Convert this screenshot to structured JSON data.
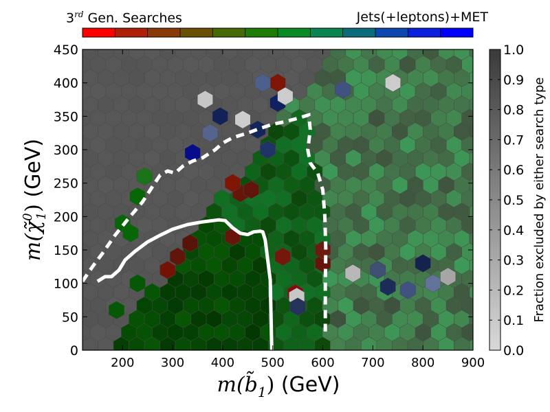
{
  "chart_data": {
    "type": "heatmap",
    "top_label_left": {
      "base": "3",
      "superscript": "rd",
      "rest": " Gen. Searches"
    },
    "top_label_right": "Jets(+leptons)+MET",
    "xlabel_math": "m(b̃",
    "xlabel_sub": "1",
    "xlabel_close": ")",
    "xlabel_unit": " (GeV)",
    "ylabel_math": "m(χ̃",
    "ylabel_sup": "0",
    "ylabel_sub": "1",
    "ylabel_close": ")",
    "ylabel_unit": " (GeV)",
    "colorbar_label": "Fraction excluded by either search type",
    "xlim": [
      120,
      900
    ],
    "ylim": [
      0,
      450
    ],
    "x_ticks": [
      200,
      300,
      400,
      500,
      600,
      700,
      800,
      900
    ],
    "x_tick_labels": [
      "200",
      "300",
      "400",
      "500",
      "600",
      "700",
      "800",
      "900"
    ],
    "y_ticks": [
      0,
      50,
      100,
      150,
      200,
      250,
      300,
      350,
      400,
      450
    ],
    "y_tick_labels": [
      "0",
      "50",
      "100",
      "150",
      "200",
      "250",
      "300",
      "350",
      "400",
      "450"
    ],
    "colorbar_ticks": [
      0.0,
      0.1,
      0.2,
      0.3,
      0.4,
      0.5,
      0.6,
      0.7,
      0.8,
      0.9,
      1.0
    ],
    "colorbar_tick_labels": [
      "0.0",
      "0.1",
      "0.2",
      "0.3",
      "0.4",
      "0.5",
      "0.6",
      "0.7",
      "0.8",
      "0.9",
      "1.0"
    ],
    "background_color": "#555555",
    "top_colorbar_colors": [
      "#ff0000",
      "#b02008",
      "#8a3a06",
      "#6a5004",
      "#466a04",
      "#1d7c06",
      "#0a8a22",
      "#0c8650",
      "#0c6c7c",
      "#0c48ae",
      "#0a20dd",
      "#0000ff"
    ],
    "colorbar_low_color": "#d9d9d9",
    "colorbar_high_color": "#3a3a3a",
    "curve_solid": [
      {
        "x": 150,
        "y": 103
      },
      {
        "x": 165,
        "y": 110
      },
      {
        "x": 178,
        "y": 110
      },
      {
        "x": 193,
        "y": 120
      },
      {
        "x": 205,
        "y": 135
      },
      {
        "x": 225,
        "y": 148
      },
      {
        "x": 250,
        "y": 162
      },
      {
        "x": 275,
        "y": 172
      },
      {
        "x": 300,
        "y": 181
      },
      {
        "x": 330,
        "y": 188
      },
      {
        "x": 360,
        "y": 192
      },
      {
        "x": 392,
        "y": 195
      },
      {
        "x": 405,
        "y": 194
      },
      {
        "x": 420,
        "y": 183
      },
      {
        "x": 435,
        "y": 175
      },
      {
        "x": 450,
        "y": 173
      },
      {
        "x": 462,
        "y": 177
      },
      {
        "x": 475,
        "y": 178
      },
      {
        "x": 480,
        "y": 177
      },
      {
        "x": 485,
        "y": 165
      },
      {
        "x": 495,
        "y": 105
      },
      {
        "x": 498,
        "y": 0
      }
    ],
    "curve_dashed": [
      {
        "x": 120,
        "y": 103
      },
      {
        "x": 140,
        "y": 125
      },
      {
        "x": 160,
        "y": 145
      },
      {
        "x": 185,
        "y": 172
      },
      {
        "x": 215,
        "y": 200
      },
      {
        "x": 240,
        "y": 222
      },
      {
        "x": 260,
        "y": 245
      },
      {
        "x": 275,
        "y": 262
      },
      {
        "x": 290,
        "y": 268
      },
      {
        "x": 305,
        "y": 265
      },
      {
        "x": 320,
        "y": 275
      },
      {
        "x": 340,
        "y": 283
      },
      {
        "x": 360,
        "y": 288
      },
      {
        "x": 385,
        "y": 300
      },
      {
        "x": 400,
        "y": 310
      },
      {
        "x": 420,
        "y": 318
      },
      {
        "x": 450,
        "y": 325
      },
      {
        "x": 475,
        "y": 332
      },
      {
        "x": 500,
        "y": 338
      },
      {
        "x": 525,
        "y": 342
      },
      {
        "x": 550,
        "y": 347
      },
      {
        "x": 572,
        "y": 352
      },
      {
        "x": 575,
        "y": 330
      },
      {
        "x": 570,
        "y": 300
      },
      {
        "x": 575,
        "y": 280
      },
      {
        "x": 590,
        "y": 265
      },
      {
        "x": 600,
        "y": 240
      },
      {
        "x": 604,
        "y": 200
      },
      {
        "x": 606,
        "y": 150
      },
      {
        "x": 605,
        "y": 100
      },
      {
        "x": 605,
        "y": 28
      }
    ],
    "hex_cells": [
      {
        "x": 200,
        "y": 190,
        "h": 0.33,
        "s": 0.95,
        "b": 0.4
      },
      {
        "x": 216,
        "y": 175,
        "h": 0.33,
        "s": 0.95,
        "b": 0.4
      },
      {
        "x": 230,
        "y": 230,
        "h": 0.33,
        "s": 0.95,
        "b": 0.4
      },
      {
        "x": 244,
        "y": 260,
        "h": 0.33,
        "s": 0.8,
        "b": 0.45
      },
      {
        "x": 188,
        "y": 60,
        "h": 0.33,
        "s": 0.95,
        "b": 0.35
      },
      {
        "x": 230,
        "y": 100,
        "h": 0.33,
        "s": 0.95,
        "b": 0.35
      },
      {
        "x": 290,
        "y": 120,
        "h": 0.02,
        "s": 0.95,
        "b": 0.45
      },
      {
        "x": 310,
        "y": 140,
        "h": 0.02,
        "s": 0.9,
        "b": 0.38
      },
      {
        "x": 335,
        "y": 160,
        "h": 0.02,
        "s": 0.9,
        "b": 0.35
      },
      {
        "x": 420,
        "y": 170,
        "h": 0.02,
        "s": 0.9,
        "b": 0.4
      },
      {
        "x": 435,
        "y": 235,
        "h": 0.02,
        "s": 0.9,
        "b": 0.4
      },
      {
        "x": 457,
        "y": 240,
        "h": 0.02,
        "s": 0.9,
        "b": 0.38
      },
      {
        "x": 510,
        "y": 400,
        "h": 0.02,
        "s": 0.95,
        "b": 0.5
      },
      {
        "x": 420,
        "y": 250,
        "h": 0.02,
        "s": 0.95,
        "b": 0.5
      },
      {
        "x": 545,
        "y": 85,
        "h": 0.0,
        "s": 0.95,
        "b": 0.55
      },
      {
        "x": 520,
        "y": 140,
        "h": 0.02,
        "s": 0.9,
        "b": 0.45
      },
      {
        "x": 600,
        "y": 130,
        "h": 0.02,
        "s": 0.9,
        "b": 0.4
      },
      {
        "x": 340,
        "y": 295,
        "h": 0.66,
        "s": 0.95,
        "b": 0.55
      },
      {
        "x": 375,
        "y": 325,
        "h": 0.62,
        "s": 0.4,
        "b": 0.55
      },
      {
        "x": 395,
        "y": 350,
        "h": 0.63,
        "s": 0.8,
        "b": 0.35
      },
      {
        "x": 440,
        "y": 345,
        "h": 0.0,
        "s": 0.0,
        "b": 0.8
      },
      {
        "x": 510,
        "y": 370,
        "h": 0.63,
        "s": 0.85,
        "b": 0.38
      },
      {
        "x": 490,
        "y": 300,
        "h": 0.62,
        "s": 0.7,
        "b": 0.4
      },
      {
        "x": 480,
        "y": 400,
        "h": 0.62,
        "s": 0.45,
        "b": 0.55
      },
      {
        "x": 365,
        "y": 375,
        "h": 0.0,
        "s": 0.0,
        "b": 0.78
      },
      {
        "x": 525,
        "y": 380,
        "h": 0.0,
        "s": 0.0,
        "b": 0.8
      },
      {
        "x": 740,
        "y": 400,
        "h": 0.0,
        "s": 0.0,
        "b": 0.8
      },
      {
        "x": 660,
        "y": 115,
        "h": 0.0,
        "s": 0.0,
        "b": 0.72
      },
      {
        "x": 548,
        "y": 80,
        "h": 0.0,
        "s": 0.0,
        "b": 0.78
      },
      {
        "x": 710,
        "y": 120,
        "h": 0.62,
        "s": 0.45,
        "b": 0.45
      },
      {
        "x": 770,
        "y": 90,
        "h": 0.62,
        "s": 0.5,
        "b": 0.5
      },
      {
        "x": 820,
        "y": 100,
        "h": 0.62,
        "s": 0.35,
        "b": 0.6
      },
      {
        "x": 550,
        "y": 65,
        "h": 0.62,
        "s": 0.6,
        "b": 0.35
      },
      {
        "x": 470,
        "y": 330,
        "h": 0.62,
        "s": 0.8,
        "b": 0.35
      },
      {
        "x": 640,
        "y": 390,
        "h": 0.62,
        "s": 0.5,
        "b": 0.5
      },
      {
        "x": 800,
        "y": 130,
        "h": 0.62,
        "s": 0.75,
        "b": 0.3
      },
      {
        "x": 730,
        "y": 95,
        "h": 0.62,
        "s": 0.7,
        "b": 0.35
      },
      {
        "x": 850,
        "y": 110,
        "h": 0.0,
        "s": 0.0,
        "b": 0.65
      },
      {
        "x": 600,
        "y": 150,
        "h": 0.02,
        "s": 0.85,
        "b": 0.42
      }
    ]
  }
}
